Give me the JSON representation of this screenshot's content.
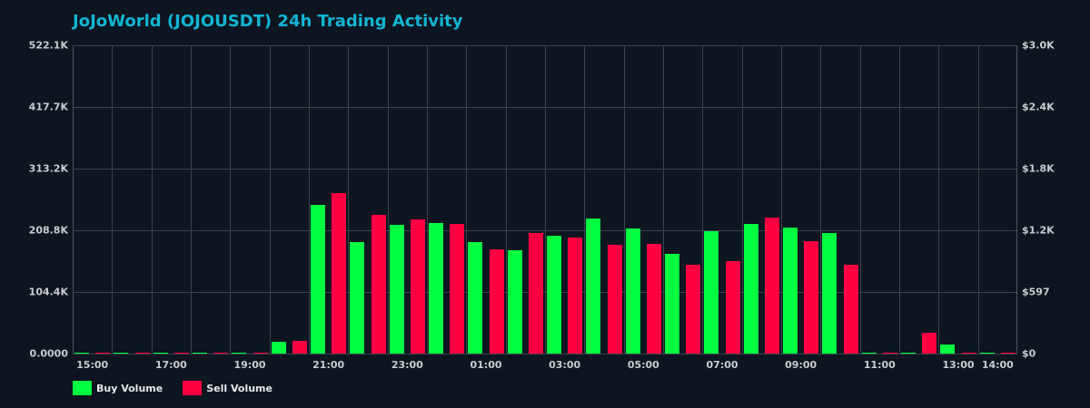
{
  "title": "JoJoWorld (JOJOUSDT) 24h Trading Activity",
  "colors": {
    "background": "#0d1520",
    "title": "#0fb5d4",
    "buy": "#00ff40",
    "sell": "#ff0040",
    "grid": "#3c4350",
    "tick_text": "#c9ccd2"
  },
  "legend": {
    "buy_label": "Buy Volume",
    "sell_label": "Sell Volume"
  },
  "axes": {
    "y_left_ticks": [
      "0.0000",
      "104.4K",
      "208.8K",
      "313.2K",
      "417.7K",
      "522.1K"
    ],
    "y_right_ticks": [
      "$0",
      "$597",
      "$1.2K",
      "$1.8K",
      "$2.4K",
      "$3.0K"
    ],
    "x_ticks": [
      "15:00",
      "17:00",
      "19:00",
      "21:00",
      "23:00",
      "01:00",
      "03:00",
      "05:00",
      "07:00",
      "09:00",
      "11:00",
      "13:00",
      "14:00"
    ]
  },
  "chart_data": {
    "type": "bar",
    "title": "JoJoWorld (JOJOUSDT) 24h Trading Activity",
    "xlabel": "",
    "ylabel": "",
    "y2label": "",
    "categories": [
      "15:00",
      "16:00",
      "17:00",
      "18:00",
      "19:00",
      "20:00",
      "21:00",
      "22:00",
      "23:00",
      "00:00",
      "01:00",
      "02:00",
      "03:00",
      "04:00",
      "05:00",
      "06:00",
      "07:00",
      "08:00",
      "09:00",
      "10:00",
      "11:00",
      "12:00",
      "13:00",
      "14:00"
    ],
    "series": [
      {
        "name": "Buy Volume",
        "color": "#00ff40",
        "values": [
          1200,
          1200,
          1200,
          1200,
          1200,
          20000,
          251800,
          188900,
          218000,
          221100,
          188900,
          175100,
          199600,
          228800,
          211900,
          168900,
          207300,
          219600,
          213400,
          204200,
          1200,
          1200,
          15400,
          1200
        ]
      },
      {
        "name": "Sell Volume",
        "color": "#ff0040",
        "values": [
          1200,
          1200,
          1200,
          1200,
          1200,
          21500,
          271800,
          234900,
          227300,
          219600,
          176600,
          204200,
          196600,
          184300,
          185800,
          150500,
          156600,
          230300,
          190400,
          150500,
          1200,
          35300,
          1200,
          1200
        ]
      }
    ],
    "ylim": [
      0,
      522100
    ],
    "y2lim": [
      0,
      3000
    ],
    "y_ticks": [
      0,
      104400,
      208800,
      313200,
      417700,
      522100
    ],
    "y2_ticks": [
      0,
      597,
      1200,
      1800,
      2400,
      3000
    ],
    "x_tick_labels": [
      "15:00",
      "17:00",
      "19:00",
      "21:00",
      "23:00",
      "01:00",
      "03:00",
      "05:00",
      "07:00",
      "09:00",
      "11:00",
      "13:00",
      "14:00"
    ],
    "grid": true,
    "legend_position": "bottom-left"
  }
}
